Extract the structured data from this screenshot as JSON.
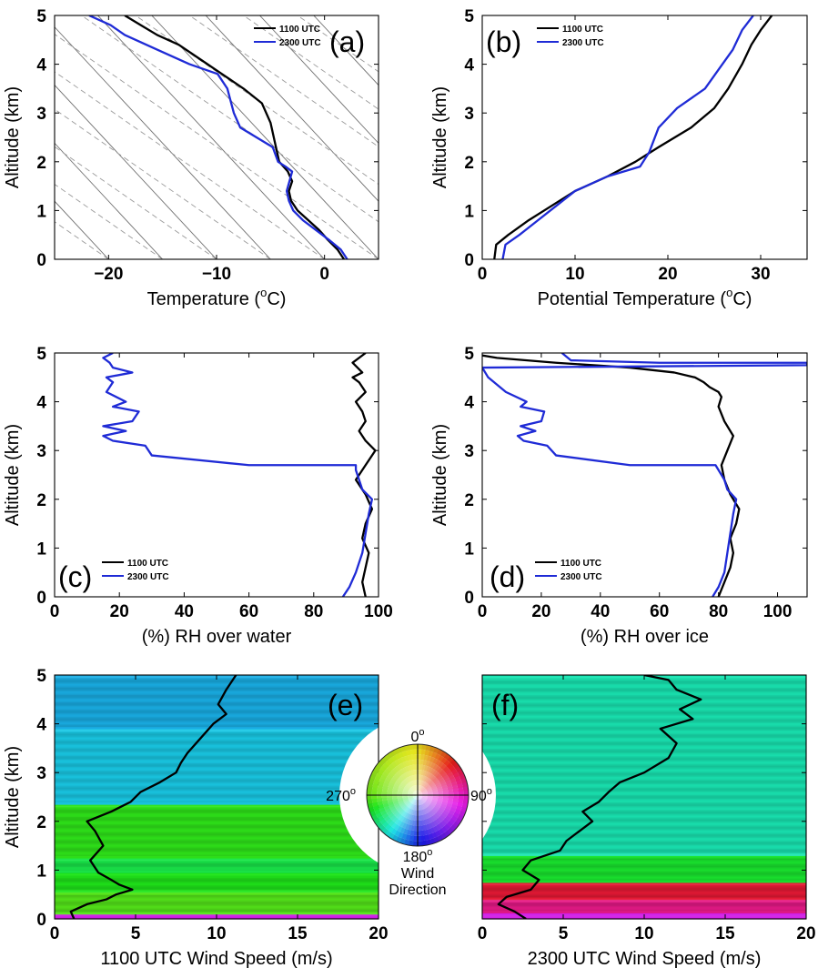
{
  "colors": {
    "c1100": "#000000",
    "c2300": "#1f2bd6",
    "isotherm": "#707070",
    "adiabat": "#9a9a9a"
  },
  "legend": {
    "s1": "1100 UTC",
    "s2": "2300 UTC"
  },
  "wheel": {
    "n": "0",
    "e": "90",
    "s": "180",
    "w": "270",
    "deg": "o",
    "title1": "Wind",
    "title2": "Direction"
  },
  "chart_data": [
    {
      "id": "a",
      "type": "line",
      "tag": "(a)",
      "xlabel": "Temperature (",
      "xlabel_sup": "o",
      "xlabel_end": "C)",
      "ylabel": "Altitude (km)",
      "xlim": [
        -25,
        5
      ],
      "ylim": [
        0,
        5
      ],
      "xticks": [
        "-20",
        "-10",
        "0"
      ],
      "xtick_values": [
        -20,
        -10,
        0
      ],
      "yticks": [
        "0",
        "1",
        "2",
        "3",
        "4",
        "5"
      ],
      "background": "skewt",
      "series": [
        {
          "name": "1100 UTC",
          "x": [
            1.8,
            1.2,
            0.3,
            -0.5,
            -1.5,
            -2.5,
            -3.1,
            -3.3,
            -3.0,
            -3.4,
            -4.2,
            -4.6,
            -5.0,
            -5.8,
            -7.5,
            -9.5,
            -11.5,
            -13.5,
            -15.5,
            -17.0,
            -18.5
          ],
          "y": [
            0,
            0.2,
            0.4,
            0.6,
            0.8,
            1.0,
            1.2,
            1.4,
            1.6,
            1.8,
            2.0,
            2.4,
            2.8,
            3.2,
            3.5,
            3.8,
            4.1,
            4.4,
            4.6,
            4.8,
            5.0
          ]
        },
        {
          "name": "2300 UTC",
          "x": [
            2.1,
            1.5,
            0.4,
            -0.8,
            -2.0,
            -2.9,
            -3.3,
            -3.5,
            -3.0,
            -3.6,
            -4.3,
            -4.8,
            -7.8,
            -8.4,
            -9.0,
            -9.9,
            -12.5,
            -15.5,
            -18.5,
            -19.8,
            -21.8
          ],
          "y": [
            0,
            0.2,
            0.4,
            0.6,
            0.8,
            1.0,
            1.2,
            1.4,
            1.8,
            1.9,
            2.0,
            2.3,
            2.7,
            3.0,
            3.5,
            3.8,
            4.0,
            4.3,
            4.6,
            4.8,
            5.0
          ]
        }
      ],
      "legend_pos": "top-right"
    },
    {
      "id": "b",
      "type": "line",
      "tag": "(b)",
      "xlabel": "Potential Temperature (",
      "xlabel_sup": "o",
      "xlabel_end": "C)",
      "ylabel": "Altitude (km)",
      "xlim": [
        0,
        35
      ],
      "ylim": [
        0,
        5
      ],
      "xticks": [
        "0",
        "10",
        "20",
        "30"
      ],
      "xtick_values": [
        0,
        10,
        20,
        30
      ],
      "yticks": [
        "0",
        "1",
        "2",
        "3",
        "4",
        "5"
      ],
      "series": [
        {
          "name": "1100 UTC",
          "x": [
            1.3,
            1.5,
            2.8,
            5.0,
            7.5,
            10.0,
            13.5,
            16.5,
            19.0,
            22.5,
            25.0,
            26.5,
            28.0,
            29.0,
            30.0,
            31.2
          ],
          "y": [
            0,
            0.3,
            0.5,
            0.8,
            1.1,
            1.4,
            1.7,
            2.0,
            2.3,
            2.7,
            3.1,
            3.5,
            4.0,
            4.4,
            4.7,
            5.0
          ]
        },
        {
          "name": "2300 UTC",
          "x": [
            2.2,
            2.5,
            4.0,
            6.0,
            8.0,
            10.0,
            13.5,
            17.0,
            18.0,
            19.0,
            21.0,
            24.0,
            25.5,
            27.0,
            28.0,
            29.2
          ],
          "y": [
            0,
            0.3,
            0.5,
            0.8,
            1.1,
            1.4,
            1.7,
            1.9,
            2.2,
            2.7,
            3.1,
            3.5,
            3.9,
            4.3,
            4.7,
            5.0
          ]
        }
      ],
      "legend_pos": "top-right"
    },
    {
      "id": "c",
      "type": "line",
      "tag": "(c)",
      "xlabel": "(%) RH over water",
      "ylabel": "Altitude (km)",
      "xlim": [
        0,
        100
      ],
      "ylim": [
        0,
        5
      ],
      "xticks": [
        "0",
        "20",
        "40",
        "60",
        "80",
        "100"
      ],
      "xtick_values": [
        0,
        20,
        40,
        60,
        80,
        100
      ],
      "yticks": [
        "0",
        "1",
        "2",
        "3",
        "4",
        "5"
      ],
      "series": [
        {
          "name": "1100 UTC",
          "x": [
            96,
            95,
            96,
            97,
            95,
            96,
            98,
            96,
            93,
            96,
            99,
            96,
            94,
            96,
            95,
            93,
            96,
            94,
            92,
            95,
            92,
            96
          ],
          "y": [
            0,
            0.3,
            0.6,
            0.9,
            1.2,
            1.5,
            1.8,
            2.1,
            2.4,
            2.7,
            3.0,
            3.2,
            3.4,
            3.6,
            3.8,
            4.0,
            4.2,
            4.4,
            4.5,
            4.6,
            4.8,
            5.0
          ]
        },
        {
          "name": "2300 UTC",
          "x": [
            89,
            91,
            93,
            95,
            96,
            97,
            98,
            95,
            94,
            93,
            93,
            60,
            30,
            28,
            18,
            15,
            22,
            15,
            24,
            26,
            18,
            22,
            16,
            18,
            16,
            24,
            18,
            17,
            15,
            18
          ],
          "y": [
            0,
            0.2,
            0.5,
            0.9,
            1.3,
            1.7,
            2.0,
            2.2,
            2.4,
            2.6,
            2.7,
            2.7,
            2.9,
            3.1,
            3.2,
            3.3,
            3.4,
            3.5,
            3.6,
            3.8,
            3.9,
            4.0,
            4.2,
            4.4,
            4.5,
            4.6,
            4.7,
            4.8,
            4.9,
            5.0
          ]
        }
      ],
      "legend_pos": "bottom-left"
    },
    {
      "id": "d",
      "type": "line",
      "tag": "(d)",
      "xlabel": "(%) RH over ice",
      "ylabel": "Altitude (km)",
      "xlim": [
        0,
        110
      ],
      "ylim": [
        0,
        5
      ],
      "xticks": [
        "0",
        "20",
        "40",
        "60",
        "80",
        "100"
      ],
      "xtick_values": [
        0,
        20,
        40,
        60,
        80,
        100
      ],
      "yticks": [
        "0",
        "1",
        "2",
        "3",
        "4",
        "5"
      ],
      "series": [
        {
          "name": "1100 UTC",
          "x": [
            80,
            82,
            84,
            85,
            84,
            86,
            87,
            84,
            82,
            81,
            83,
            85,
            82,
            80,
            81,
            80,
            77,
            75,
            72,
            65,
            50,
            25,
            5,
            0
          ],
          "y": [
            0,
            0.3,
            0.6,
            0.9,
            1.2,
            1.5,
            1.8,
            2.1,
            2.4,
            2.7,
            3.0,
            3.3,
            3.6,
            3.9,
            4.1,
            4.2,
            4.3,
            4.4,
            4.5,
            4.6,
            4.7,
            4.8,
            4.9,
            4.95
          ]
        },
        {
          "name": "2300 UTC",
          "x": [
            78,
            80,
            82,
            83,
            84,
            85,
            86,
            83,
            82,
            80,
            79,
            50,
            25,
            22,
            14,
            12,
            18,
            13,
            20,
            21,
            13,
            15,
            8,
            2,
            0,
            110,
            110,
            60,
            30,
            27
          ],
          "y": [
            0,
            0.2,
            0.5,
            0.9,
            1.3,
            1.7,
            2.0,
            2.2,
            2.4,
            2.6,
            2.7,
            2.7,
            2.9,
            3.1,
            3.2,
            3.3,
            3.4,
            3.5,
            3.6,
            3.8,
            3.9,
            4.0,
            4.2,
            4.5,
            4.7,
            4.75,
            4.8,
            4.8,
            4.85,
            5.0
          ]
        }
      ],
      "legend_pos": "bottom-left"
    },
    {
      "id": "e",
      "type": "heatmap",
      "tag": "(e)",
      "xlabel": "1100 UTC Wind Speed (m/s)",
      "ylabel": "Altitude (km)",
      "xlim": [
        0,
        20
      ],
      "ylim": [
        0,
        5
      ],
      "xticks": [
        "0",
        "5",
        "10",
        "15",
        "20"
      ],
      "xtick_values": [
        0,
        5,
        10,
        15,
        20
      ],
      "yticks": [
        "0",
        "1",
        "2",
        "3",
        "4",
        "5"
      ],
      "direction_bands": [
        {
          "y0": 0.0,
          "y1": 0.1,
          "dir": 110
        },
        {
          "y0": 0.1,
          "y1": 0.55,
          "dir": 265
        },
        {
          "y0": 0.55,
          "y1": 0.95,
          "dir": 255
        },
        {
          "y0": 0.95,
          "y1": 1.25,
          "dir": 245
        },
        {
          "y0": 1.25,
          "y1": 2.35,
          "dir": 258
        },
        {
          "y0": 2.35,
          "y1": 3.9,
          "dir": 210
        },
        {
          "y0": 3.9,
          "y1": 5.0,
          "dir": 205
        }
      ],
      "series": [
        {
          "name": "1100 UTC",
          "x": [
            1.2,
            1.0,
            2.0,
            3.2,
            3.8,
            4.8,
            4.0,
            3.5,
            2.7,
            2.2,
            3.0,
            2.5,
            2.0,
            3.5,
            4.7,
            5.3,
            6.5,
            7.5,
            7.8,
            8.2,
            9.0,
            9.8,
            10.6,
            10.1,
            10.6,
            11.2
          ],
          "y": [
            0,
            0.15,
            0.3,
            0.4,
            0.5,
            0.6,
            0.7,
            0.8,
            0.95,
            1.2,
            1.5,
            1.8,
            2.0,
            2.2,
            2.4,
            2.6,
            2.8,
            3.0,
            3.2,
            3.4,
            3.7,
            4.0,
            4.2,
            4.4,
            4.7,
            5.0
          ]
        }
      ]
    },
    {
      "id": "f",
      "type": "heatmap",
      "tag": "(f)",
      "xlabel": "2300 UTC Wind Speed (m/s)",
      "ylabel": "",
      "xlim": [
        0,
        20
      ],
      "ylim": [
        0,
        5
      ],
      "xticks": [
        "0",
        "5",
        "10",
        "15",
        "20"
      ],
      "xtick_values": [
        0,
        5,
        10,
        15,
        20
      ],
      "yticks": [],
      "direction_bands": [
        {
          "y0": 0.0,
          "y1": 0.12,
          "dir": 110
        },
        {
          "y0": 0.12,
          "y1": 0.4,
          "dir": 75
        },
        {
          "y0": 0.4,
          "y1": 0.75,
          "dir": 55
        },
        {
          "y0": 0.75,
          "y1": 1.3,
          "dir": 250
        },
        {
          "y0": 1.3,
          "y1": 5.0,
          "dir": 225
        }
      ],
      "series": [
        {
          "name": "2300 UTC",
          "x": [
            2.7,
            2.0,
            1.0,
            1.5,
            3.0,
            3.5,
            2.5,
            3.0,
            4.8,
            5.2,
            6.0,
            6.8,
            6.2,
            7.2,
            7.8,
            8.5,
            10.0,
            11.5,
            12.0,
            11.0,
            13.0,
            12.2,
            13.5,
            12.0,
            11.5,
            10.0
          ],
          "y": [
            0,
            0.15,
            0.3,
            0.45,
            0.6,
            0.8,
            1.0,
            1.2,
            1.4,
            1.6,
            1.8,
            2.0,
            2.2,
            2.4,
            2.6,
            2.8,
            3.0,
            3.3,
            3.6,
            3.9,
            4.1,
            4.3,
            4.5,
            4.7,
            4.9,
            5.0
          ]
        }
      ]
    }
  ]
}
